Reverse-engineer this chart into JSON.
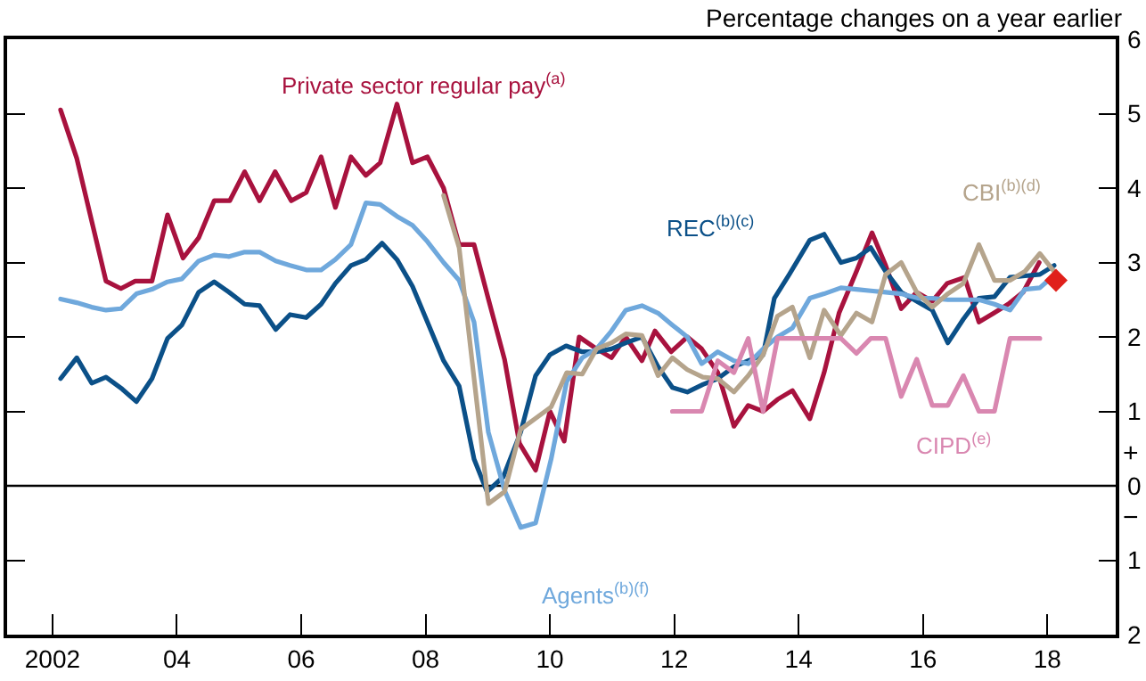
{
  "chart_data": {
    "type": "line",
    "ylabel": "Percentage changes on a year earlier",
    "xlim": [
      2001.27,
      2019.1
    ],
    "xticks": [
      {
        "value": 2002,
        "label": "2002"
      },
      {
        "value": 2004,
        "label": "04"
      },
      {
        "value": 2006,
        "label": "06"
      },
      {
        "value": 2008,
        "label": "08"
      },
      {
        "value": 2010,
        "label": "10"
      },
      {
        "value": 2012,
        "label": "12"
      },
      {
        "value": 2014,
        "label": "14"
      },
      {
        "value": 2016,
        "label": "16"
      },
      {
        "value": 2018,
        "label": "18"
      }
    ],
    "ylim": [
      -2,
      6
    ],
    "yticks": [
      {
        "value": -2,
        "label": "2"
      },
      {
        "value": -1,
        "label": "1"
      },
      0,
      1,
      2,
      3,
      4,
      5,
      6
    ],
    "grid": false,
    "legend": false,
    "marker": "none",
    "line_style": "solid",
    "ref_lines": [
      {
        "axis": "y",
        "value": 0,
        "label": null,
        "color": "#000000"
      }
    ],
    "annotations": [
      "+",
      "−"
    ],
    "series": [
      {
        "name": "Private sector regular pay$^{(a)}$",
        "color": "#a8123e",
        "x": [
          2002.13,
          2002.39,
          2002.86,
          2003.1,
          2003.33,
          2003.6,
          2003.85,
          2004.1,
          2004.35,
          2004.6,
          2004.85,
          2005.09,
          2005.33,
          2005.58,
          2005.84,
          2006.08,
          2006.32,
          2006.55,
          2006.8,
          2007.04,
          2007.27,
          2007.54,
          2007.79,
          2008.03,
          2008.29,
          2008.54,
          2008.78,
          2009.01,
          2009.27,
          2009.51,
          2009.77,
          2010.0,
          2010.23,
          2010.47,
          2010.75,
          2010.99,
          2011.22,
          2011.48,
          2011.69,
          2011.95,
          2012.21,
          2012.44,
          2012.7,
          2012.96,
          2013.19,
          2013.43,
          2013.66,
          2013.9,
          2014.18,
          2014.41,
          2014.65,
          2014.93,
          2015.18,
          2015.4,
          2015.65,
          2015.9,
          2016.15,
          2016.39,
          2016.67,
          2016.9,
          2017.14,
          2017.37,
          2017.61,
          2017.87
        ],
        "values": [
          5.05,
          4.4,
          2.75,
          2.65,
          2.75,
          2.75,
          3.64,
          3.06,
          3.33,
          3.83,
          3.83,
          4.22,
          3.83,
          4.22,
          3.83,
          3.94,
          4.42,
          3.74,
          4.42,
          4.17,
          4.34,
          5.13,
          4.34,
          4.42,
          4.0,
          3.24,
          3.24,
          2.51,
          1.7,
          0.57,
          0.21,
          1.0,
          0.6,
          2.0,
          1.84,
          1.72,
          2.0,
          1.68,
          2.08,
          1.8,
          2.0,
          1.84,
          1.52,
          0.8,
          1.08,
          1.0,
          1.16,
          1.28,
          0.9,
          1.52,
          2.32,
          2.88,
          3.4,
          2.96,
          2.38,
          2.6,
          2.48,
          2.72,
          2.8,
          2.2,
          2.32,
          2.44,
          2.6,
          3.0
        ]
      },
      {
        "name": "REC$^{(b)(c)}$",
        "color": "#0b5088",
        "x": [
          2002.13,
          2002.39,
          2002.63,
          2002.86,
          2003.12,
          2003.35,
          2003.6,
          2003.85,
          2004.08,
          2004.35,
          2004.6,
          2004.84,
          2005.09,
          2005.33,
          2005.59,
          2005.82,
          2006.08,
          2006.32,
          2006.55,
          2006.8,
          2007.04,
          2007.3,
          2007.54,
          2007.79,
          2008.03,
          2008.29,
          2008.54,
          2008.78,
          2008.99,
          2009.25,
          2009.53,
          2009.77,
          2010.0,
          2010.26,
          2010.52,
          2010.75,
          2010.99,
          2011.22,
          2011.48,
          2011.74,
          2011.97,
          2012.21,
          2012.46,
          2012.7,
          2012.96,
          2013.19,
          2013.43,
          2013.61,
          2013.85,
          2014.18,
          2014.41,
          2014.68,
          2014.93,
          2015.16,
          2015.4,
          2015.65,
          2015.9,
          2016.15,
          2016.4,
          2016.65,
          2016.9,
          2017.15,
          2017.4,
          2017.64,
          2017.88,
          2018.11
        ],
        "values": [
          1.44,
          1.72,
          1.38,
          1.46,
          1.3,
          1.13,
          1.44,
          1.98,
          2.16,
          2.6,
          2.74,
          2.6,
          2.44,
          2.42,
          2.1,
          2.3,
          2.26,
          2.44,
          2.72,
          2.96,
          3.04,
          3.26,
          3.04,
          2.68,
          2.2,
          1.68,
          1.34,
          0.36,
          -0.08,
          0.12,
          0.72,
          1.48,
          1.76,
          1.88,
          1.8,
          1.8,
          1.84,
          1.92,
          2.0,
          1.6,
          1.32,
          1.26,
          1.36,
          1.44,
          1.6,
          1.68,
          1.76,
          2.52,
          2.84,
          3.3,
          3.38,
          3.0,
          3.06,
          3.2,
          2.88,
          2.6,
          2.48,
          2.36,
          1.92,
          2.24,
          2.52,
          2.54,
          2.8,
          2.82,
          2.84,
          2.96
        ]
      },
      {
        "name": "Agents$^{(b)(f)}$",
        "color": "#6fa8dc",
        "x": [
          2002.13,
          2002.39,
          2002.63,
          2002.86,
          2003.1,
          2003.35,
          2003.6,
          2003.85,
          2004.08,
          2004.35,
          2004.6,
          2004.84,
          2005.09,
          2005.33,
          2005.59,
          2005.82,
          2006.08,
          2006.32,
          2006.55,
          2006.8,
          2007.04,
          2007.27,
          2007.54,
          2007.79,
          2008.03,
          2008.29,
          2008.54,
          2008.78,
          2009.01,
          2009.27,
          2009.53,
          2009.77,
          2010.02,
          2010.27,
          2010.52,
          2010.75,
          2010.99,
          2011.22,
          2011.48,
          2011.74,
          2011.97,
          2012.21,
          2012.44,
          2012.7,
          2012.96,
          2013.19,
          2013.43,
          2013.66,
          2013.9,
          2014.18,
          2014.41,
          2014.68,
          2014.93,
          2015.16,
          2015.4,
          2015.65,
          2015.92,
          2016.15,
          2016.4,
          2016.65,
          2016.9,
          2017.15,
          2017.4,
          2017.64,
          2017.88,
          2018.07
        ],
        "values": [
          2.51,
          2.46,
          2.4,
          2.36,
          2.38,
          2.58,
          2.64,
          2.74,
          2.78,
          3.02,
          3.1,
          3.08,
          3.14,
          3.14,
          3.02,
          2.96,
          2.9,
          2.9,
          3.04,
          3.24,
          3.8,
          3.78,
          3.62,
          3.5,
          3.28,
          3.0,
          2.76,
          2.2,
          0.72,
          -0.06,
          -0.56,
          -0.5,
          0.36,
          1.4,
          1.72,
          1.84,
          2.08,
          2.36,
          2.42,
          2.32,
          2.16,
          2.0,
          1.64,
          1.8,
          1.68,
          1.64,
          1.84,
          2.0,
          2.12,
          2.52,
          2.58,
          2.66,
          2.64,
          2.62,
          2.6,
          2.58,
          2.52,
          2.52,
          2.5,
          2.5,
          2.5,
          2.44,
          2.36,
          2.64,
          2.66,
          2.8
        ]
      },
      {
        "name": "CBI$^{(b)(d)}$",
        "color": "#b5a48c",
        "x": [
          2008.29,
          2008.54,
          2009.01,
          2009.27,
          2009.53,
          2010.02,
          2010.27,
          2010.52,
          2010.75,
          2010.99,
          2011.22,
          2011.48,
          2011.74,
          2011.97,
          2012.21,
          2012.46,
          2012.7,
          2012.96,
          2013.19,
          2013.43,
          2013.66,
          2013.9,
          2014.18,
          2014.41,
          2014.68,
          2014.93,
          2015.18,
          2015.4,
          2015.65,
          2015.9,
          2016.15,
          2016.4,
          2016.65,
          2016.9,
          2017.15,
          2017.4,
          2017.64,
          2017.88,
          2018.11
        ],
        "values": [
          3.9,
          3.2,
          -0.24,
          -0.08,
          0.76,
          1.06,
          1.52,
          1.5,
          1.84,
          1.92,
          2.04,
          2.02,
          1.48,
          1.72,
          1.56,
          1.46,
          1.44,
          1.26,
          1.48,
          1.76,
          2.28,
          2.4,
          1.72,
          2.36,
          2.02,
          2.32,
          2.2,
          2.84,
          3.0,
          2.6,
          2.4,
          2.58,
          2.72,
          3.24,
          2.76,
          2.76,
          2.88,
          3.12,
          2.88
        ]
      },
      {
        "name": "CIPD$^{(e)}$",
        "color": "#d987b0",
        "x": [
          2011.97,
          2012.44,
          2012.7,
          2012.96,
          2013.19,
          2013.43,
          2013.66,
          2013.9,
          2014.18,
          2014.41,
          2014.68,
          2014.93,
          2015.16,
          2015.4,
          2015.65,
          2015.9,
          2016.15,
          2016.4,
          2016.65,
          2016.9,
          2017.15,
          2017.4,
          2017.64,
          2017.88
        ],
        "values": [
          1.0,
          1.0,
          1.68,
          1.52,
          1.98,
          1.0,
          1.98,
          1.98,
          1.98,
          1.98,
          1.98,
          1.78,
          1.98,
          1.98,
          1.2,
          1.7,
          1.08,
          1.08,
          1.48,
          1.0,
          1.0,
          1.98,
          1.98,
          1.98
        ]
      },
      {
        "type": "scatter",
        "marker": "diamond",
        "color": "#e0201b",
        "x": [
          2018.14
        ],
        "values": [
          2.76
        ]
      }
    ]
  }
}
